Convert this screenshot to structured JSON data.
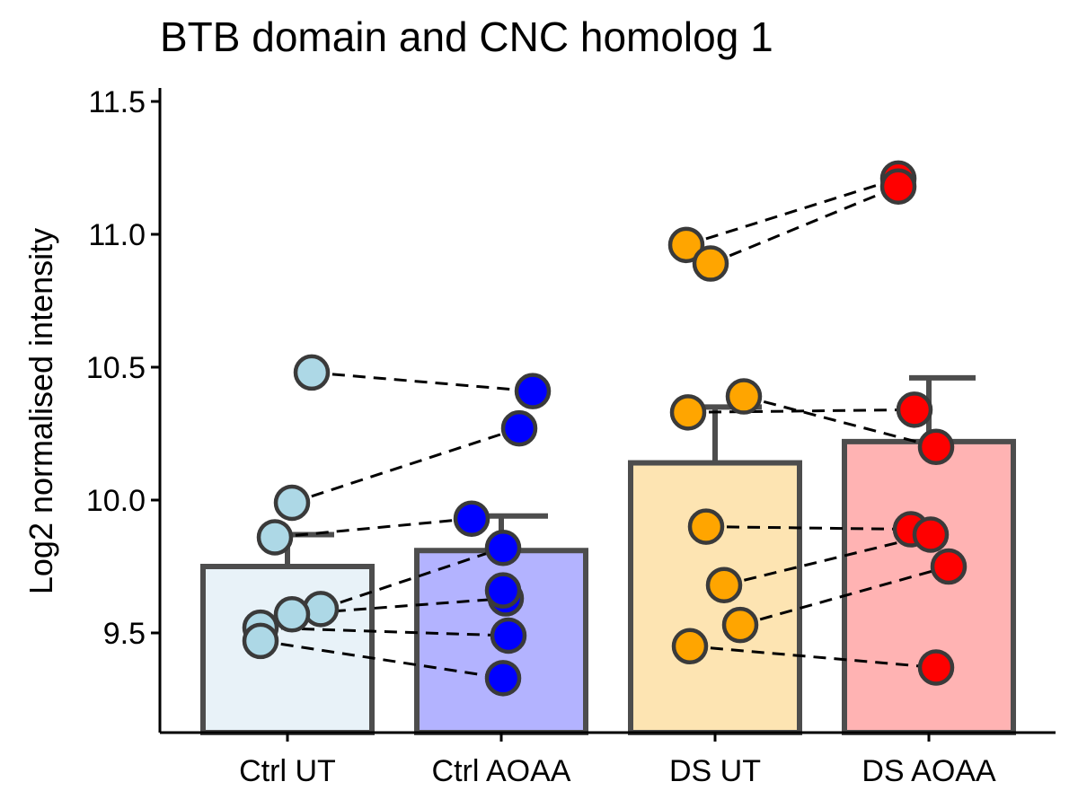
{
  "chart_data": {
    "type": "bar",
    "title": "BTB domain and CNC homolog 1",
    "xlabel": "",
    "ylabel": "Log2 normalised intensity",
    "ylim": [
      9.15,
      11.55
    ],
    "yticks": [
      9.5,
      10.0,
      10.5,
      11.0,
      11.5
    ],
    "ytick_labels": [
      "9.5",
      "10.0",
      "10.5",
      "11.0",
      "11.5"
    ],
    "grid": false,
    "legend": "none",
    "categories": [
      "Ctrl UT",
      "Ctrl AOAA",
      "DS UT",
      "DS AOAA"
    ],
    "values": [
      9.75,
      9.81,
      10.14,
      10.22
    ],
    "error_upper": [
      9.87,
      9.94,
      10.35,
      10.46
    ],
    "bar_fill_colors": [
      "#e8f2f8",
      "#b3b3ff",
      "#fde4b2",
      "#ffb3b3"
    ],
    "point_colors": [
      "#add8e6",
      "#0000ff",
      "#ffa500",
      "#ff0000"
    ],
    "points": [
      [
        10.48,
        9.99,
        9.86,
        9.59,
        9.57,
        9.52,
        9.47
      ],
      [
        10.41,
        10.27,
        9.93,
        9.82,
        9.63,
        9.66,
        9.49,
        9.33
      ],
      [
        10.96,
        10.89,
        10.33,
        10.39,
        9.9,
        9.68,
        9.53,
        9.45
      ],
      [
        11.21,
        11.18,
        10.34,
        10.2,
        9.89,
        9.87,
        9.75,
        9.37
      ]
    ],
    "pairs": [
      [
        [
          0,
          10.48
        ],
        [
          1,
          10.41
        ]
      ],
      [
        [
          0,
          9.99
        ],
        [
          1,
          10.27
        ]
      ],
      [
        [
          0,
          9.86
        ],
        [
          1,
          9.93
        ]
      ],
      [
        [
          0,
          9.59
        ],
        [
          1,
          9.82
        ]
      ],
      [
        [
          0,
          9.57
        ],
        [
          1,
          9.63
        ]
      ],
      [
        [
          0,
          9.52
        ],
        [
          1,
          9.49
        ]
      ],
      [
        [
          0,
          9.47
        ],
        [
          1,
          9.33
        ]
      ],
      [
        [
          2,
          10.96
        ],
        [
          3,
          11.21
        ]
      ],
      [
        [
          2,
          10.89
        ],
        [
          3,
          11.18
        ]
      ],
      [
        [
          2,
          10.33
        ],
        [
          3,
          10.34
        ]
      ],
      [
        [
          2,
          10.39
        ],
        [
          3,
          10.2
        ]
      ],
      [
        [
          2,
          9.9
        ],
        [
          3,
          9.89
        ]
      ],
      [
        [
          2,
          9.68
        ],
        [
          3,
          9.87
        ]
      ],
      [
        [
          2,
          9.53
        ],
        [
          3,
          9.75
        ]
      ],
      [
        [
          2,
          9.45
        ],
        [
          3,
          9.37
        ]
      ]
    ]
  }
}
